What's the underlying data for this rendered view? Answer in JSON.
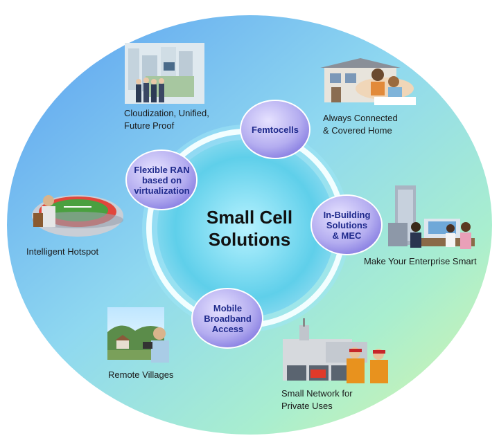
{
  "diagram": {
    "center_title": [
      "Small Cell",
      "Solutions"
    ],
    "bubbles": [
      {
        "id": "femtocells",
        "lines": [
          "Femtocells"
        ]
      },
      {
        "id": "flexible-ran",
        "lines": [
          "Flexible RAN",
          "based on",
          "virtualization"
        ]
      },
      {
        "id": "in-building",
        "lines": [
          "In-Building",
          "Solutions",
          "& MEC"
        ]
      },
      {
        "id": "mobile-broadband",
        "lines": [
          "Mobile",
          "Broadband",
          "Access"
        ]
      }
    ],
    "scenarios": [
      {
        "id": "cloudization",
        "lines": [
          "Cloudization, Unified,",
          "Future Proof"
        ],
        "icon": "city-business-icon"
      },
      {
        "id": "home",
        "lines": [
          "Always Connected",
          "& Covered Home"
        ],
        "icon": "home-family-icon"
      },
      {
        "id": "hotspot",
        "lines": [
          "Intelligent Hotspot"
        ],
        "icon": "stadium-icon"
      },
      {
        "id": "enterprise",
        "lines": [
          "Make Your Enterprise Smart"
        ],
        "icon": "office-meeting-icon"
      },
      {
        "id": "villages",
        "lines": [
          "Remote Villages"
        ],
        "icon": "village-tablet-icon"
      },
      {
        "id": "private",
        "lines": [
          "Small Network for",
          "Private Uses"
        ],
        "icon": "fire-station-icon"
      }
    ],
    "colors": {
      "accent_text": "#1f2a8c",
      "bubble_fill": "#b8b2f0",
      "ring": "#e8fbff"
    }
  }
}
